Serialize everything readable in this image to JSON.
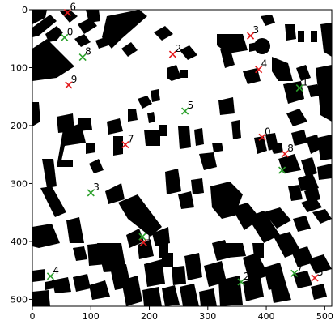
{
  "chart_data": {
    "type": "scatter",
    "title": "",
    "xlabel": "",
    "ylabel": "",
    "xlim": [
      0,
      512
    ],
    "ylim": [
      512,
      0
    ],
    "x_ticks": [
      0,
      100,
      200,
      300,
      400,
      500
    ],
    "y_ticks": [
      0,
      100,
      200,
      300,
      400,
      500
    ],
    "grid": false,
    "background": "building footprint map (black buildings on white)",
    "series": [
      {
        "color": "#2ca02c",
        "marker": "x",
        "points": [
          {
            "label": "0",
            "x": 55,
            "y": 48
          },
          {
            "label": "1",
            "x": 457,
            "y": 135
          },
          {
            "label": "2",
            "x": 357,
            "y": 470
          },
          {
            "label": "3",
            "x": 100,
            "y": 316
          },
          {
            "label": "4",
            "x": 31,
            "y": 460
          },
          {
            "label": "5",
            "x": 261,
            "y": 175
          },
          {
            "label": "6",
            "x": 188,
            "y": 392
          },
          {
            "label": "7",
            "x": 448,
            "y": 455
          },
          {
            "label": "8",
            "x": 86,
            "y": 82
          },
          {
            "label": "9",
            "x": 427,
            "y": 277
          }
        ]
      },
      {
        "color": "#e31a1c",
        "marker": "x",
        "points": [
          {
            "label": "0",
            "x": 393,
            "y": 220
          },
          {
            "label": "1",
            "x": 190,
            "y": 402
          },
          {
            "label": "2",
            "x": 240,
            "y": 77
          },
          {
            "label": "3",
            "x": 373,
            "y": 45
          },
          {
            "label": "4",
            "x": 387,
            "y": 103
          },
          {
            "label": "5",
            "x": 483,
            "y": 463
          },
          {
            "label": "6",
            "x": 60,
            "y": 5
          },
          {
            "label": "7",
            "x": 159,
            "y": 233
          },
          {
            "label": "8",
            "x": 432,
            "y": 249
          },
          {
            "label": "9",
            "x": 62,
            "y": 130
          }
        ]
      }
    ]
  }
}
